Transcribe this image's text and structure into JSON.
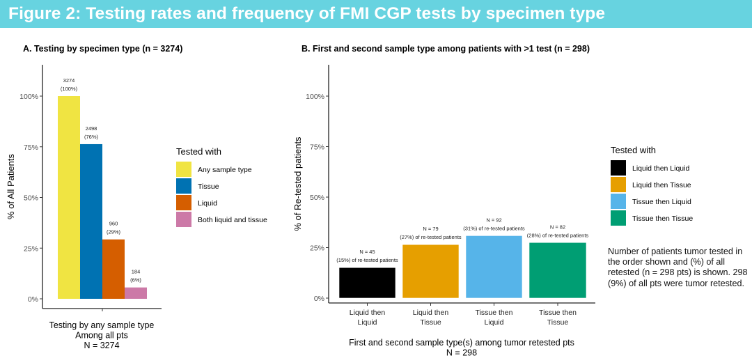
{
  "figure_title": "Figure 2: Testing rates and frequency of FMI CGP tests by specimen type",
  "note": "Number of patients tumor tested in the order shown and (%) of all retested (n = 298 pts) is shown. 298 (9%) of all pts were tumor retested.",
  "chart_data": [
    {
      "type": "bar",
      "title": "A. Testing by specimen type (n = 3274)",
      "ylabel": "% of All Patients",
      "xlabel_lines": [
        "Testing by any sample type",
        "Among all pts",
        "N = 3274"
      ],
      "ylim": [
        0,
        100
      ],
      "yticks": [
        0,
        25,
        50,
        75,
        100
      ],
      "ytick_labels": [
        "0%",
        "25%",
        "50%",
        "75%",
        "100%"
      ],
      "legend_title": "Tested with",
      "legend_position": "right",
      "series": [
        {
          "name": "Any sample type",
          "value": 100,
          "label_lines": [
            "3274",
            "(100%)"
          ],
          "color": "#f0e442"
        },
        {
          "name": "Tissue",
          "value": 76.3,
          "label_lines": [
            "2498",
            "(76%)"
          ],
          "color": "#0072b2"
        },
        {
          "name": "Liquid",
          "value": 29.3,
          "label_lines": [
            "960",
            "(29%)"
          ],
          "color": "#d55e00"
        },
        {
          "name": "Both liquid and tissue",
          "value": 5.6,
          "label_lines": [
            "184",
            "(6%)"
          ],
          "color": "#cc79a7"
        }
      ]
    },
    {
      "type": "bar",
      "title": "B. First and second sample type among patients with >1 test (n = 298)",
      "ylabel": "% of Re-tested patients",
      "xlabel_lines": [
        "First and second sample type(s) among tumor retested pts",
        "N = 298"
      ],
      "ylim": [
        0,
        100
      ],
      "yticks": [
        0,
        25,
        50,
        75,
        100
      ],
      "ytick_labels": [
        "0%",
        "25%",
        "50%",
        "75%",
        "100%"
      ],
      "legend_title": "Tested with",
      "legend_position": "right",
      "categories": [
        {
          "name": "Liquid then Liquid",
          "tick_lines": [
            "Liquid then",
            "Liquid"
          ],
          "value": 15.1,
          "label_lines": [
            "N = 45",
            "(15%) of re-tested patients"
          ],
          "color": "#000000"
        },
        {
          "name": "Liquid then Tissue",
          "tick_lines": [
            "Liquid then",
            "Tissue"
          ],
          "value": 26.5,
          "label_lines": [
            "N = 79",
            "(27%) of re-tested patients"
          ],
          "color": "#e69f00"
        },
        {
          "name": "Tissue then Liquid",
          "tick_lines": [
            "Tissue then",
            "Liquid"
          ],
          "value": 30.9,
          "label_lines": [
            "N = 92",
            "(31%) of re-tested patients"
          ],
          "color": "#56b4e9"
        },
        {
          "name": "Tissue then Tissue",
          "tick_lines": [
            "Tissue then",
            "Tissue"
          ],
          "value": 27.5,
          "label_lines": [
            "N = 82",
            "(28%) of re-tested patients"
          ],
          "color": "#009e73"
        }
      ]
    }
  ]
}
